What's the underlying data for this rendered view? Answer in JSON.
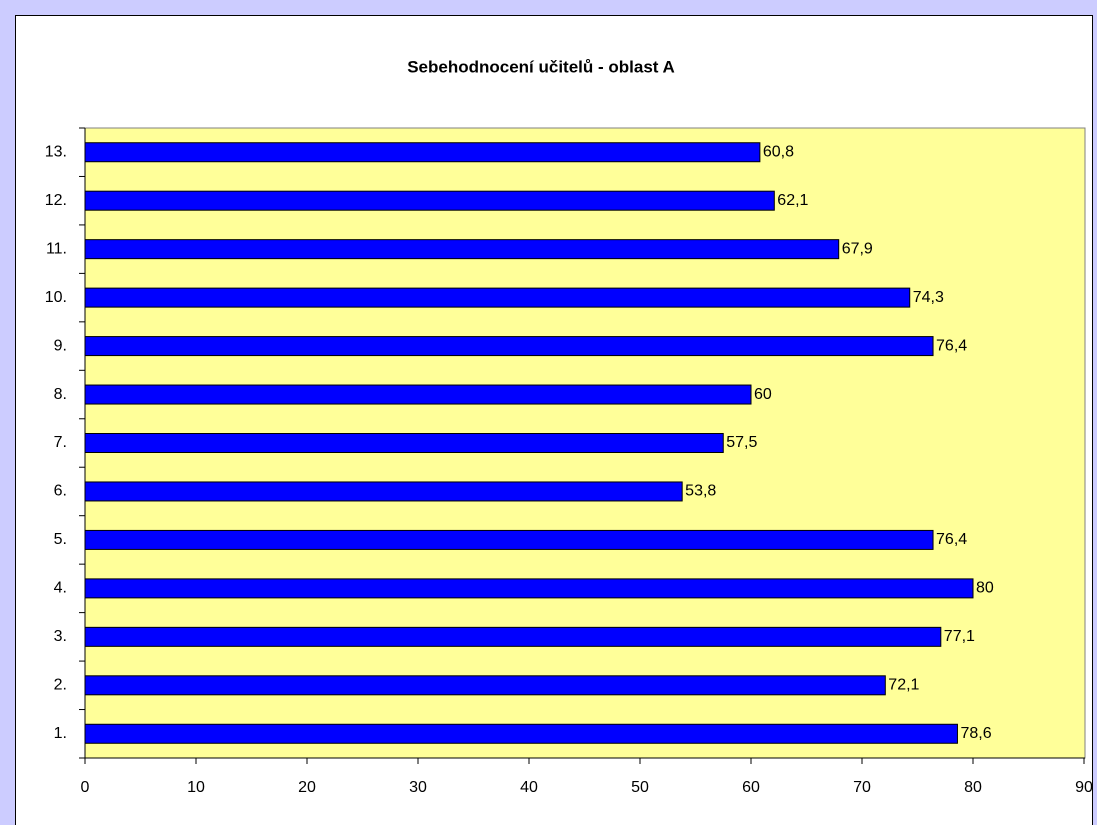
{
  "chart_data": {
    "type": "bar",
    "orientation": "horizontal",
    "title": "Sebehodnocení učitelů  - oblast A",
    "categories": [
      "1.",
      "2.",
      "3.",
      "4.",
      "5.",
      "6.",
      "7.",
      "8.",
      "9.",
      "10.",
      "11.",
      "12.",
      "13."
    ],
    "values": [
      78.6,
      72.1,
      77.1,
      80,
      76.4,
      53.8,
      57.5,
      60,
      76.4,
      74.3,
      67.9,
      62.1,
      60.8
    ],
    "value_labels": [
      "78,6",
      "72,1",
      "77,1",
      "80",
      "76,4",
      "53,8",
      "57,5",
      "60",
      "76,4",
      "74,3",
      "67,9",
      "62,1",
      "60,8"
    ],
    "color": "#0000ff",
    "xlim": [
      0,
      90
    ],
    "xticks": [
      0,
      10,
      20,
      30,
      40,
      50,
      60,
      70,
      80,
      90
    ],
    "grid": false
  }
}
